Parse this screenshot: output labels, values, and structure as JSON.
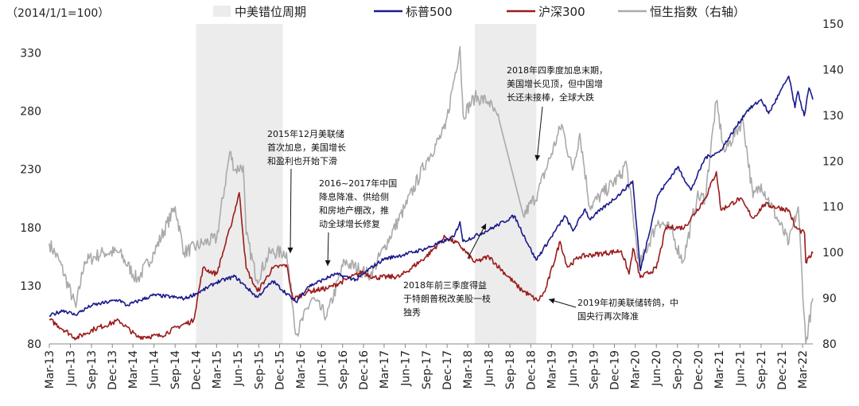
{
  "chart_data": {
    "type": "line",
    "unit_label": "（2014/1/1=100）",
    "x_range": [
      "2013-03-01",
      "2022-04-15"
    ],
    "x_ticks": [
      "Mar-13",
      "Jun-13",
      "Sep-13",
      "Dec-13",
      "Mar-14",
      "Jun-14",
      "Sep-14",
      "Dec-14",
      "Mar-15",
      "Jun-15",
      "Sep-15",
      "Dec-15",
      "Mar-16",
      "Jun-16",
      "Sep-16",
      "Dec-16",
      "Mar-17",
      "Jun-17",
      "Sep-17",
      "Dec-17",
      "Mar-18",
      "Jun-18",
      "Sep-18",
      "Dec-18",
      "Mar-19",
      "Jun-19",
      "Sep-19",
      "Dec-19",
      "Mar-20",
      "Jun-20",
      "Sep-20",
      "Dec-20",
      "Mar-21",
      "Jun-21",
      "Sep-21",
      "Dec-21",
      "Mar-22"
    ],
    "y_left": {
      "min": 80,
      "max": 355,
      "ticks": [
        80,
        130,
        180,
        230,
        280,
        330
      ]
    },
    "y_right": {
      "min": 80,
      "max": 150,
      "ticks": [
        80,
        90,
        100,
        110,
        120,
        130,
        140,
        150
      ]
    },
    "grid": false,
    "legend_position": "top",
    "shaded_periods": {
      "name": "中美错位周期",
      "color": "#ececec",
      "ranges": [
        [
          "2014-12-01",
          "2015-12-15"
        ],
        [
          "2018-04-01",
          "2018-12-25"
        ]
      ]
    },
    "series": [
      {
        "name": "标普500",
        "axis": "left",
        "color": "#1a1a8c",
        "points": [
          [
            "2013-03-01",
            104
          ],
          [
            "2013-05-01",
            109
          ],
          [
            "2013-06-20",
            105
          ],
          [
            "2013-09-01",
            113
          ],
          [
            "2013-12-31",
            118
          ],
          [
            "2014-02-01",
            113
          ],
          [
            "2014-06-01",
            122
          ],
          [
            "2014-10-15",
            119
          ],
          [
            "2014-12-31",
            126
          ],
          [
            "2015-03-01",
            133
          ],
          [
            "2015-05-20",
            138
          ],
          [
            "2015-08-25",
            120
          ],
          [
            "2015-11-01",
            134
          ],
          [
            "2016-02-11",
            116
          ],
          [
            "2016-04-01",
            129
          ],
          [
            "2016-08-01",
            140
          ],
          [
            "2016-11-01",
            135
          ],
          [
            "2016-12-31",
            145
          ],
          [
            "2017-03-01",
            153
          ],
          [
            "2017-06-01",
            157
          ],
          [
            "2017-09-01",
            162
          ],
          [
            "2017-12-31",
            172
          ],
          [
            "2018-01-26",
            185
          ],
          [
            "2018-02-08",
            168
          ],
          [
            "2018-06-01",
            178
          ],
          [
            "2018-09-20",
            190
          ],
          [
            "2018-12-24",
            152
          ],
          [
            "2019-04-30",
            190
          ],
          [
            "2019-06-03",
            177
          ],
          [
            "2019-07-26",
            196
          ],
          [
            "2019-08-15",
            187
          ],
          [
            "2019-12-31",
            210
          ],
          [
            "2020-02-19",
            220
          ],
          [
            "2020-03-23",
            143
          ],
          [
            "2020-06-08",
            208
          ],
          [
            "2020-09-02",
            232
          ],
          [
            "2020-10-30",
            212
          ],
          [
            "2020-12-31",
            240
          ],
          [
            "2021-03-04",
            245
          ],
          [
            "2021-06-30",
            280
          ],
          [
            "2021-09-02",
            290
          ],
          [
            "2021-10-04",
            278
          ],
          [
            "2021-12-31",
            310
          ],
          [
            "2022-01-27",
            283
          ],
          [
            "2022-02-09",
            297
          ],
          [
            "2022-03-08",
            276
          ],
          [
            "2022-03-29",
            300
          ],
          [
            "2022-04-15",
            290
          ]
        ]
      },
      {
        "name": "沪深300",
        "axis": "left",
        "color": "#9b1b1b",
        "points": [
          [
            "2013-03-01",
            101
          ],
          [
            "2013-06-25",
            85
          ],
          [
            "2013-09-15",
            93
          ],
          [
            "2013-12-31",
            100
          ],
          [
            "2014-03-20",
            86
          ],
          [
            "2014-07-01",
            87
          ],
          [
            "2014-09-15",
            95
          ],
          [
            "2014-11-20",
            100
          ],
          [
            "2014-12-31",
            145
          ],
          [
            "2015-03-01",
            140
          ],
          [
            "2015-04-30",
            180
          ],
          [
            "2015-06-08",
            210
          ],
          [
            "2015-07-08",
            145
          ],
          [
            "2015-08-26",
            125
          ],
          [
            "2015-11-01",
            145
          ],
          [
            "2015-12-31",
            148
          ],
          [
            "2016-01-28",
            118
          ],
          [
            "2016-04-01",
            125
          ],
          [
            "2016-07-01",
            128
          ],
          [
            "2016-11-30",
            142
          ],
          [
            "2017-01-16",
            137
          ],
          [
            "2017-05-10",
            138
          ],
          [
            "2017-09-01",
            155
          ],
          [
            "2017-11-22",
            172
          ],
          [
            "2018-01-24",
            165
          ],
          [
            "2018-04-01",
            150
          ],
          [
            "2018-06-01",
            155
          ],
          [
            "2018-10-12",
            128
          ],
          [
            "2018-12-31",
            117
          ],
          [
            "2019-02-01",
            125
          ],
          [
            "2019-04-08",
            168
          ],
          [
            "2019-05-10",
            146
          ],
          [
            "2019-07-01",
            155
          ],
          [
            "2019-12-31",
            160
          ],
          [
            "2020-02-03",
            140
          ],
          [
            "2020-02-20",
            162
          ],
          [
            "2020-03-23",
            137
          ],
          [
            "2020-06-01",
            145
          ],
          [
            "2020-07-13",
            180
          ],
          [
            "2020-10-01",
            180
          ],
          [
            "2020-12-31",
            205
          ],
          [
            "2021-02-18",
            228
          ],
          [
            "2021-03-10",
            195
          ],
          [
            "2021-06-01",
            205
          ],
          [
            "2021-07-28",
            188
          ],
          [
            "2021-09-15",
            200
          ],
          [
            "2021-12-31",
            195
          ],
          [
            "2022-01-28",
            180
          ],
          [
            "2022-03-10",
            175
          ],
          [
            "2022-03-15",
            150
          ],
          [
            "2022-04-15",
            158
          ]
        ]
      },
      {
        "name": "恒生指数（右轴）",
        "axis": "right",
        "color": "#aaaaaa",
        "points": [
          [
            "2013-03-01",
            102
          ],
          [
            "2013-04-15",
            98
          ],
          [
            "2013-06-25",
            88
          ],
          [
            "2013-08-01",
            98
          ],
          [
            "2013-10-25",
            100
          ],
          [
            "2013-12-31",
            100
          ],
          [
            "2014-03-20",
            94
          ],
          [
            "2014-06-01",
            100
          ],
          [
            "2014-09-01",
            110
          ],
          [
            "2014-10-10",
            100
          ],
          [
            "2014-12-31",
            102
          ],
          [
            "2015-03-01",
            103
          ],
          [
            "2015-04-28",
            122
          ],
          [
            "2015-05-20",
            118
          ],
          [
            "2015-06-25",
            119
          ],
          [
            "2015-07-08",
            104
          ],
          [
            "2015-08-24",
            94
          ],
          [
            "2015-10-20",
            100
          ],
          [
            "2015-12-31",
            100
          ],
          [
            "2016-02-12",
            82
          ],
          [
            "2016-04-20",
            90
          ],
          [
            "2016-06-24",
            86
          ],
          [
            "2016-09-09",
            98
          ],
          [
            "2016-12-31",
            95
          ],
          [
            "2017-03-01",
            101
          ],
          [
            "2017-06-01",
            110
          ],
          [
            "2017-09-01",
            120
          ],
          [
            "2017-11-22",
            127
          ],
          [
            "2018-01-26",
            145
          ],
          [
            "2018-02-09",
            130
          ],
          [
            "2018-04-01",
            134
          ],
          [
            "2018-06-01",
            133
          ],
          [
            "2018-07-20",
            128
          ],
          [
            "2018-08-15],",
            121
          ],
          [
            "2018-10-30",
            108
          ],
          [
            "2018-12-31",
            113
          ],
          [
            "2019-04-15",
            128
          ],
          [
            "2019-06-01",
            118
          ],
          [
            "2019-07-03",
            126
          ],
          [
            "2019-08-15",
            110
          ],
          [
            "2019-12-31",
            117
          ],
          [
            "2020-01-20",
            120
          ],
          [
            "2020-03-19",
            97
          ],
          [
            "2020-06-09",
            107
          ],
          [
            "2020-08-01",
            105
          ],
          [
            "2020-09-25",
            98
          ],
          [
            "2020-11-25",
            112
          ],
          [
            "2020-12-31",
            112
          ],
          [
            "2021-02-17",
            133
          ],
          [
            "2021-03-25",
            122
          ],
          [
            "2021-06-14",
            129
          ],
          [
            "2021-07-28",
            112
          ],
          [
            "2021-09-01",
            115
          ],
          [
            "2021-12-31",
            102
          ],
          [
            "2022-02-10",
            110
          ],
          [
            "2022-03-15",
            80
          ],
          [
            "2022-04-15",
            90
          ]
        ]
      }
    ],
    "annotations": [
      {
        "lines": [
          "2015年12月美联储",
          "首次加息，美国增长",
          "和盈利也开始下滑"
        ]
      },
      {
        "lines": [
          "2016~2017年中国",
          "降息降准、供给侧",
          "和房地产棚改，推",
          "动全球增长修复"
        ]
      },
      {
        "lines": [
          "2018年四季度加息末期，",
          "美国增长见顶，但中国增",
          "长还未接棒，全球大跌"
        ]
      },
      {
        "lines": [
          "2018年前三季度得益",
          "于特朗普税改美股一枝",
          "独秀"
        ]
      },
      {
        "lines": [
          "2019年初美联储转鸽，中",
          "国央行再次降准"
        ]
      }
    ]
  }
}
